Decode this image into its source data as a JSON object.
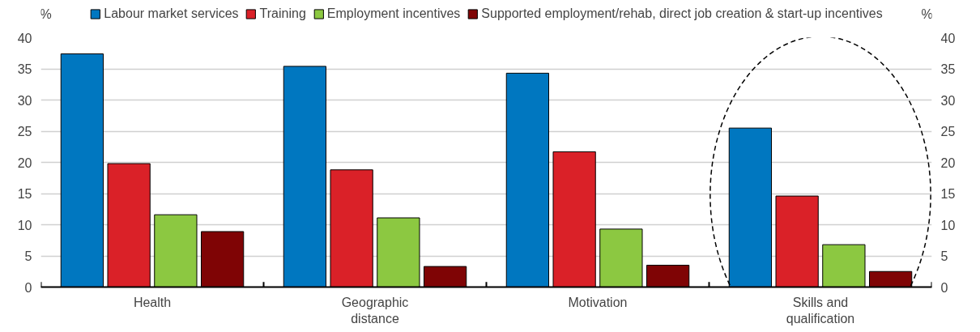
{
  "chart_data": {
    "type": "bar",
    "categories": [
      "Health",
      "Geographic distance",
      "Motivation",
      "Skills and qualification"
    ],
    "series": [
      {
        "name": "Labour market services",
        "color": "#0077c0",
        "values": [
          37.4,
          35.4,
          34.3,
          25.5
        ]
      },
      {
        "name": "Training",
        "color": "#da2128",
        "values": [
          19.8,
          18.8,
          21.7,
          14.6
        ]
      },
      {
        "name": "Employment incentives",
        "color": "#8cc841",
        "values": [
          11.6,
          11.1,
          9.3,
          6.8
        ]
      },
      {
        "name": "Supported employment/rehab, direct job creation & start-up incentives",
        "color": "#7f0405",
        "values": [
          8.9,
          3.3,
          3.5,
          2.5
        ]
      }
    ],
    "ylabel": "%",
    "y2label": "%",
    "ylim": [
      0,
      40
    ],
    "yticks": [
      0,
      5,
      10,
      15,
      20,
      25,
      30,
      35,
      40
    ],
    "y2lim": [
      0,
      40
    ],
    "y2ticks": [
      0,
      5,
      10,
      15,
      20,
      25,
      30,
      35,
      40
    ],
    "grid": "y",
    "legend": "top"
  }
}
